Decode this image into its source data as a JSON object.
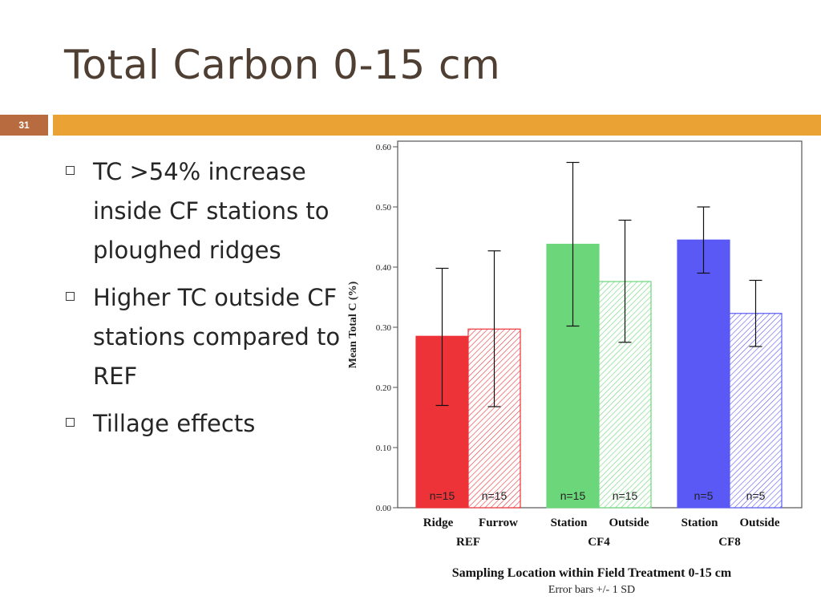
{
  "slide": {
    "title": "Total Carbon 0-15 cm",
    "number": "31",
    "colors": {
      "title": "#4f3f33",
      "accent_bar": "#eba234",
      "number_box": "#b86b3e"
    }
  },
  "bullets": [
    {
      "text": "TC >54% increase inside CF stations to ploughed ridges"
    },
    {
      "text": "Higher TC outside CF stations compared to REF"
    },
    {
      "text": "Tillage effects"
    }
  ],
  "chart_data": {
    "type": "bar",
    "ylabel": "Mean Total C (%)",
    "xlabel": "Sampling Location within Field Treatment  0-15 cm",
    "note": "Error bars +/- 1 SD",
    "ylim": [
      0,
      0.6
    ],
    "yticks": [
      "0.00",
      "0.10",
      "0.20",
      "0.30",
      "0.40",
      "0.50",
      "0.60"
    ],
    "grid": false,
    "groups": [
      {
        "name": "REF",
        "color": "#ee3338"
      },
      {
        "name": "CF4",
        "color": "#6cd67a"
      },
      {
        "name": "CF8",
        "color": "#5a59f5"
      }
    ],
    "bars": [
      {
        "group": 0,
        "label": "Ridge",
        "value": 0.285,
        "err_low": 0.17,
        "err_high": 0.398,
        "n": "n=15",
        "hatched": false
      },
      {
        "group": 0,
        "label": "Furrow",
        "value": 0.297,
        "err_low": 0.168,
        "err_high": 0.427,
        "n": "n=15",
        "hatched": true
      },
      {
        "group": 1,
        "label": "Station",
        "value": 0.438,
        "err_low": 0.302,
        "err_high": 0.574,
        "n": "n=15",
        "hatched": false
      },
      {
        "group": 1,
        "label": "Outside",
        "value": 0.376,
        "err_low": 0.275,
        "err_high": 0.478,
        "n": "n=15",
        "hatched": true
      },
      {
        "group": 2,
        "label": "Station",
        "value": 0.445,
        "err_low": 0.39,
        "err_high": 0.5,
        "n": "n=5",
        "hatched": false
      },
      {
        "group": 2,
        "label": "Outside",
        "value": 0.323,
        "err_low": 0.268,
        "err_high": 0.378,
        "n": "n=5",
        "hatched": true
      }
    ]
  }
}
